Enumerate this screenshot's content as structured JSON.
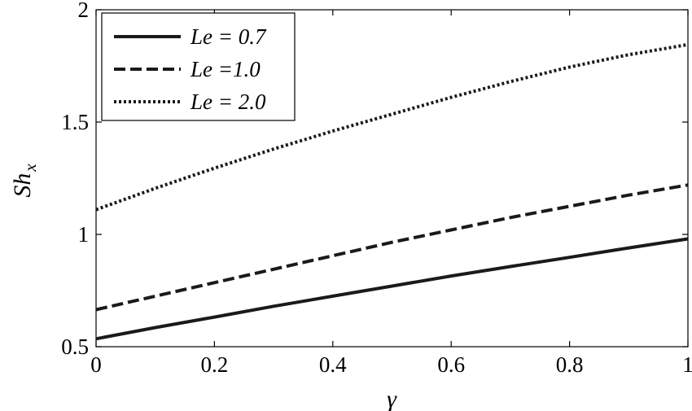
{
  "chart_data": {
    "type": "line",
    "title": "",
    "xlabel": "γ",
    "ylabel": "Sh",
    "ylabel_sub": "x",
    "xlim": [
      0,
      1
    ],
    "ylim": [
      0.5,
      2
    ],
    "x_ticks": [
      0,
      0.2,
      0.4,
      0.6,
      0.8,
      1
    ],
    "x_tick_labels": [
      "0",
      "0.2",
      "0.4",
      "0.6",
      "0.8",
      "1"
    ],
    "y_ticks": [
      0.5,
      1,
      1.5,
      2
    ],
    "y_tick_labels": [
      "0.5",
      "1",
      "1.5",
      "2"
    ],
    "grid": false,
    "legend_position": "top-left",
    "x": [
      0,
      0.1,
      0.2,
      0.3,
      0.4,
      0.5,
      0.6,
      0.7,
      0.8,
      0.9,
      1.0
    ],
    "series": [
      {
        "name": "Le = 0.7",
        "style": "solid",
        "values": [
          0.535,
          0.585,
          0.632,
          0.68,
          0.725,
          0.77,
          0.815,
          0.857,
          0.898,
          0.94,
          0.98
        ]
      },
      {
        "name": "Le =1.0",
        "style": "dashed",
        "values": [
          0.665,
          0.725,
          0.785,
          0.845,
          0.905,
          0.965,
          1.02,
          1.075,
          1.125,
          1.175,
          1.22
        ]
      },
      {
        "name": "Le = 2.0",
        "style": "dotted",
        "values": [
          1.11,
          1.205,
          1.295,
          1.38,
          1.46,
          1.535,
          1.61,
          1.68,
          1.745,
          1.8,
          1.845
        ]
      }
    ]
  }
}
